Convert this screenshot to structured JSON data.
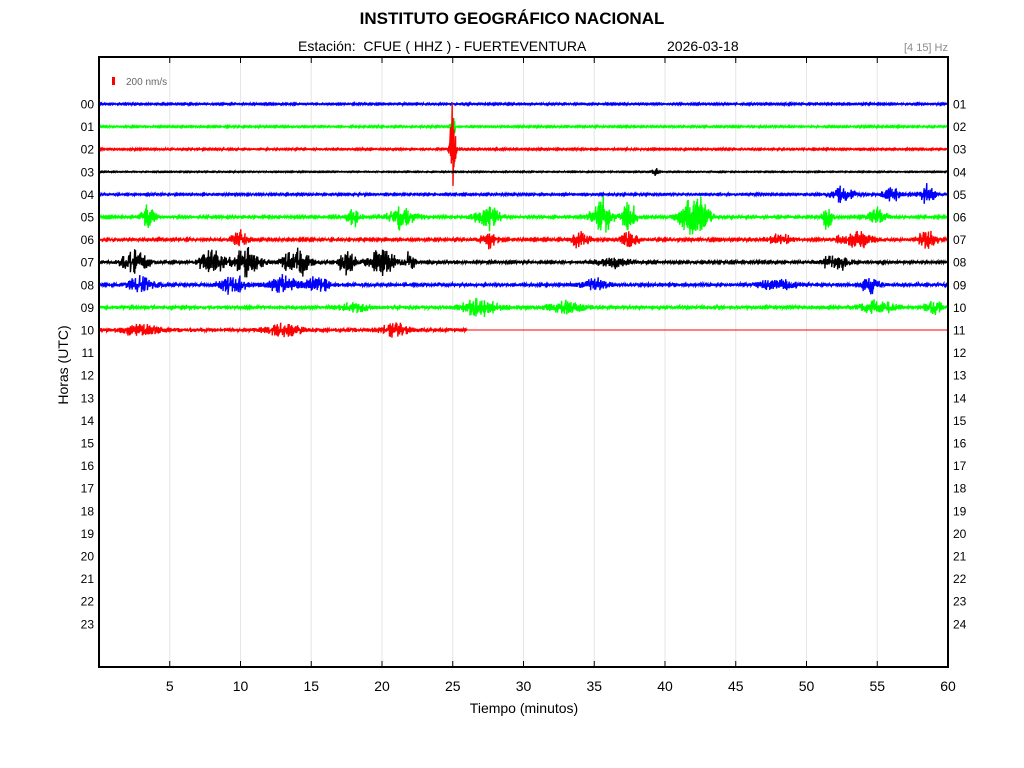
{
  "header": {
    "institution": "INSTITUTO GEOGRÁFICO NACIONAL",
    "station_label": "Estación:",
    "station": "CFUE ( HHZ ) - FUERTEVENTURA",
    "date": "2026-03-18",
    "band": "[4 15] Hz"
  },
  "chart_data": {
    "type": "line",
    "subtype": "helicorder",
    "xlabel": "Tiempo (minutos)",
    "ylabel": "Horas (UTC)",
    "xlim": [
      0,
      60
    ],
    "x_ticks": [
      5,
      10,
      15,
      20,
      25,
      30,
      35,
      40,
      45,
      50,
      55,
      60
    ],
    "left_hour_labels": [
      "00",
      "01",
      "02",
      "03",
      "04",
      "05",
      "06",
      "07",
      "08",
      "09",
      "10",
      "11",
      "12",
      "13",
      "14",
      "15",
      "16",
      "17",
      "18",
      "19",
      "20",
      "21",
      "22",
      "23"
    ],
    "right_hour_labels": [
      "01",
      "02",
      "03",
      "04",
      "05",
      "06",
      "07",
      "08",
      "09",
      "10",
      "11",
      "12",
      "13",
      "14",
      "15",
      "16",
      "17",
      "18",
      "19",
      "20",
      "21",
      "22",
      "23",
      "24"
    ],
    "scale_bar": {
      "label": "200 nm/s",
      "color": "#ff0000"
    },
    "grid": "vertical",
    "trace_colors": [
      "#0000ff",
      "#00ff00",
      "#ff0000",
      "#000000"
    ],
    "traces": [
      {
        "hour": "00",
        "color": "#0000ff",
        "end_minute": 60,
        "level": 0.18,
        "bursts": []
      },
      {
        "hour": "01",
        "color": "#00ff00",
        "end_minute": 60,
        "level": 0.18,
        "bursts": [
          [
            25.0,
            0.2,
            7
          ]
        ]
      },
      {
        "hour": "02",
        "color": "#ff0000",
        "end_minute": 60,
        "level": 0.18,
        "bursts": [
          [
            25.0,
            0.3,
            15
          ]
        ]
      },
      {
        "hour": "03",
        "color": "#000000",
        "end_minute": 60,
        "level": 0.12,
        "bursts": [
          [
            39.3,
            0.3,
            1.5
          ]
        ]
      },
      {
        "hour": "04",
        "color": "#0000ff",
        "end_minute": 60,
        "level": 0.2,
        "bursts": [
          [
            52.5,
            1.5,
            2.5
          ],
          [
            56,
            1,
            3
          ],
          [
            58.5,
            1,
            3
          ]
        ]
      },
      {
        "hour": "05",
        "color": "#00ff00",
        "end_minute": 60,
        "level": 0.3,
        "bursts": [
          [
            3.5,
            0.8,
            4
          ],
          [
            18.0,
            0.8,
            3
          ],
          [
            21.5,
            1.5,
            4
          ],
          [
            27.5,
            1.5,
            4
          ],
          [
            35.5,
            1.2,
            6
          ],
          [
            37.5,
            0.8,
            5
          ],
          [
            42.0,
            1.5,
            8
          ],
          [
            51.5,
            0.5,
            5
          ],
          [
            55.0,
            1,
            3
          ]
        ]
      },
      {
        "hour": "06",
        "color": "#ff0000",
        "end_minute": 60,
        "level": 0.3,
        "bursts": [
          [
            10.0,
            1,
            3
          ],
          [
            27.5,
            1,
            3
          ],
          [
            34.0,
            1,
            3
          ],
          [
            37.5,
            1,
            3
          ],
          [
            48.0,
            1.5,
            2
          ],
          [
            53.5,
            2,
            3
          ],
          [
            58.5,
            1,
            4
          ]
        ]
      },
      {
        "hour": "07",
        "color": "#000000",
        "end_minute": 60,
        "level": 0.3,
        "bursts": [
          [
            2.5,
            1.5,
            4
          ],
          [
            8.0,
            1.5,
            4
          ],
          [
            10.5,
            1.5,
            5
          ],
          [
            14.0,
            1.5,
            5
          ],
          [
            17.5,
            1,
            4
          ],
          [
            20.0,
            1.5,
            5
          ],
          [
            22.0,
            0.5,
            4
          ],
          [
            36.5,
            2,
            2
          ],
          [
            52.0,
            1.5,
            3
          ]
        ]
      },
      {
        "hour": "08",
        "color": "#0000ff",
        "end_minute": 60,
        "level": 0.4,
        "bursts": [
          [
            3.0,
            1.5,
            3
          ],
          [
            9.5,
            1.5,
            3
          ],
          [
            13.0,
            1.5,
            3
          ],
          [
            15.5,
            1.5,
            3
          ],
          [
            35.0,
            1.5,
            2
          ],
          [
            48.0,
            2,
            2
          ],
          [
            54.5,
            1,
            3
          ]
        ]
      },
      {
        "hour": "09",
        "color": "#00ff00",
        "end_minute": 60,
        "level": 0.45,
        "bursts": [
          [
            18.0,
            1.5,
            2
          ],
          [
            27.0,
            2,
            3
          ],
          [
            33.0,
            2,
            2
          ],
          [
            55.0,
            2,
            2
          ],
          [
            59.0,
            1,
            2
          ]
        ]
      },
      {
        "hour": "10",
        "color": "#ff0000",
        "end_minute": 26.0,
        "level": 0.5,
        "bursts": [
          [
            3.0,
            2,
            2
          ],
          [
            13.0,
            2,
            2
          ],
          [
            21.0,
            1.5,
            2
          ]
        ]
      }
    ]
  }
}
